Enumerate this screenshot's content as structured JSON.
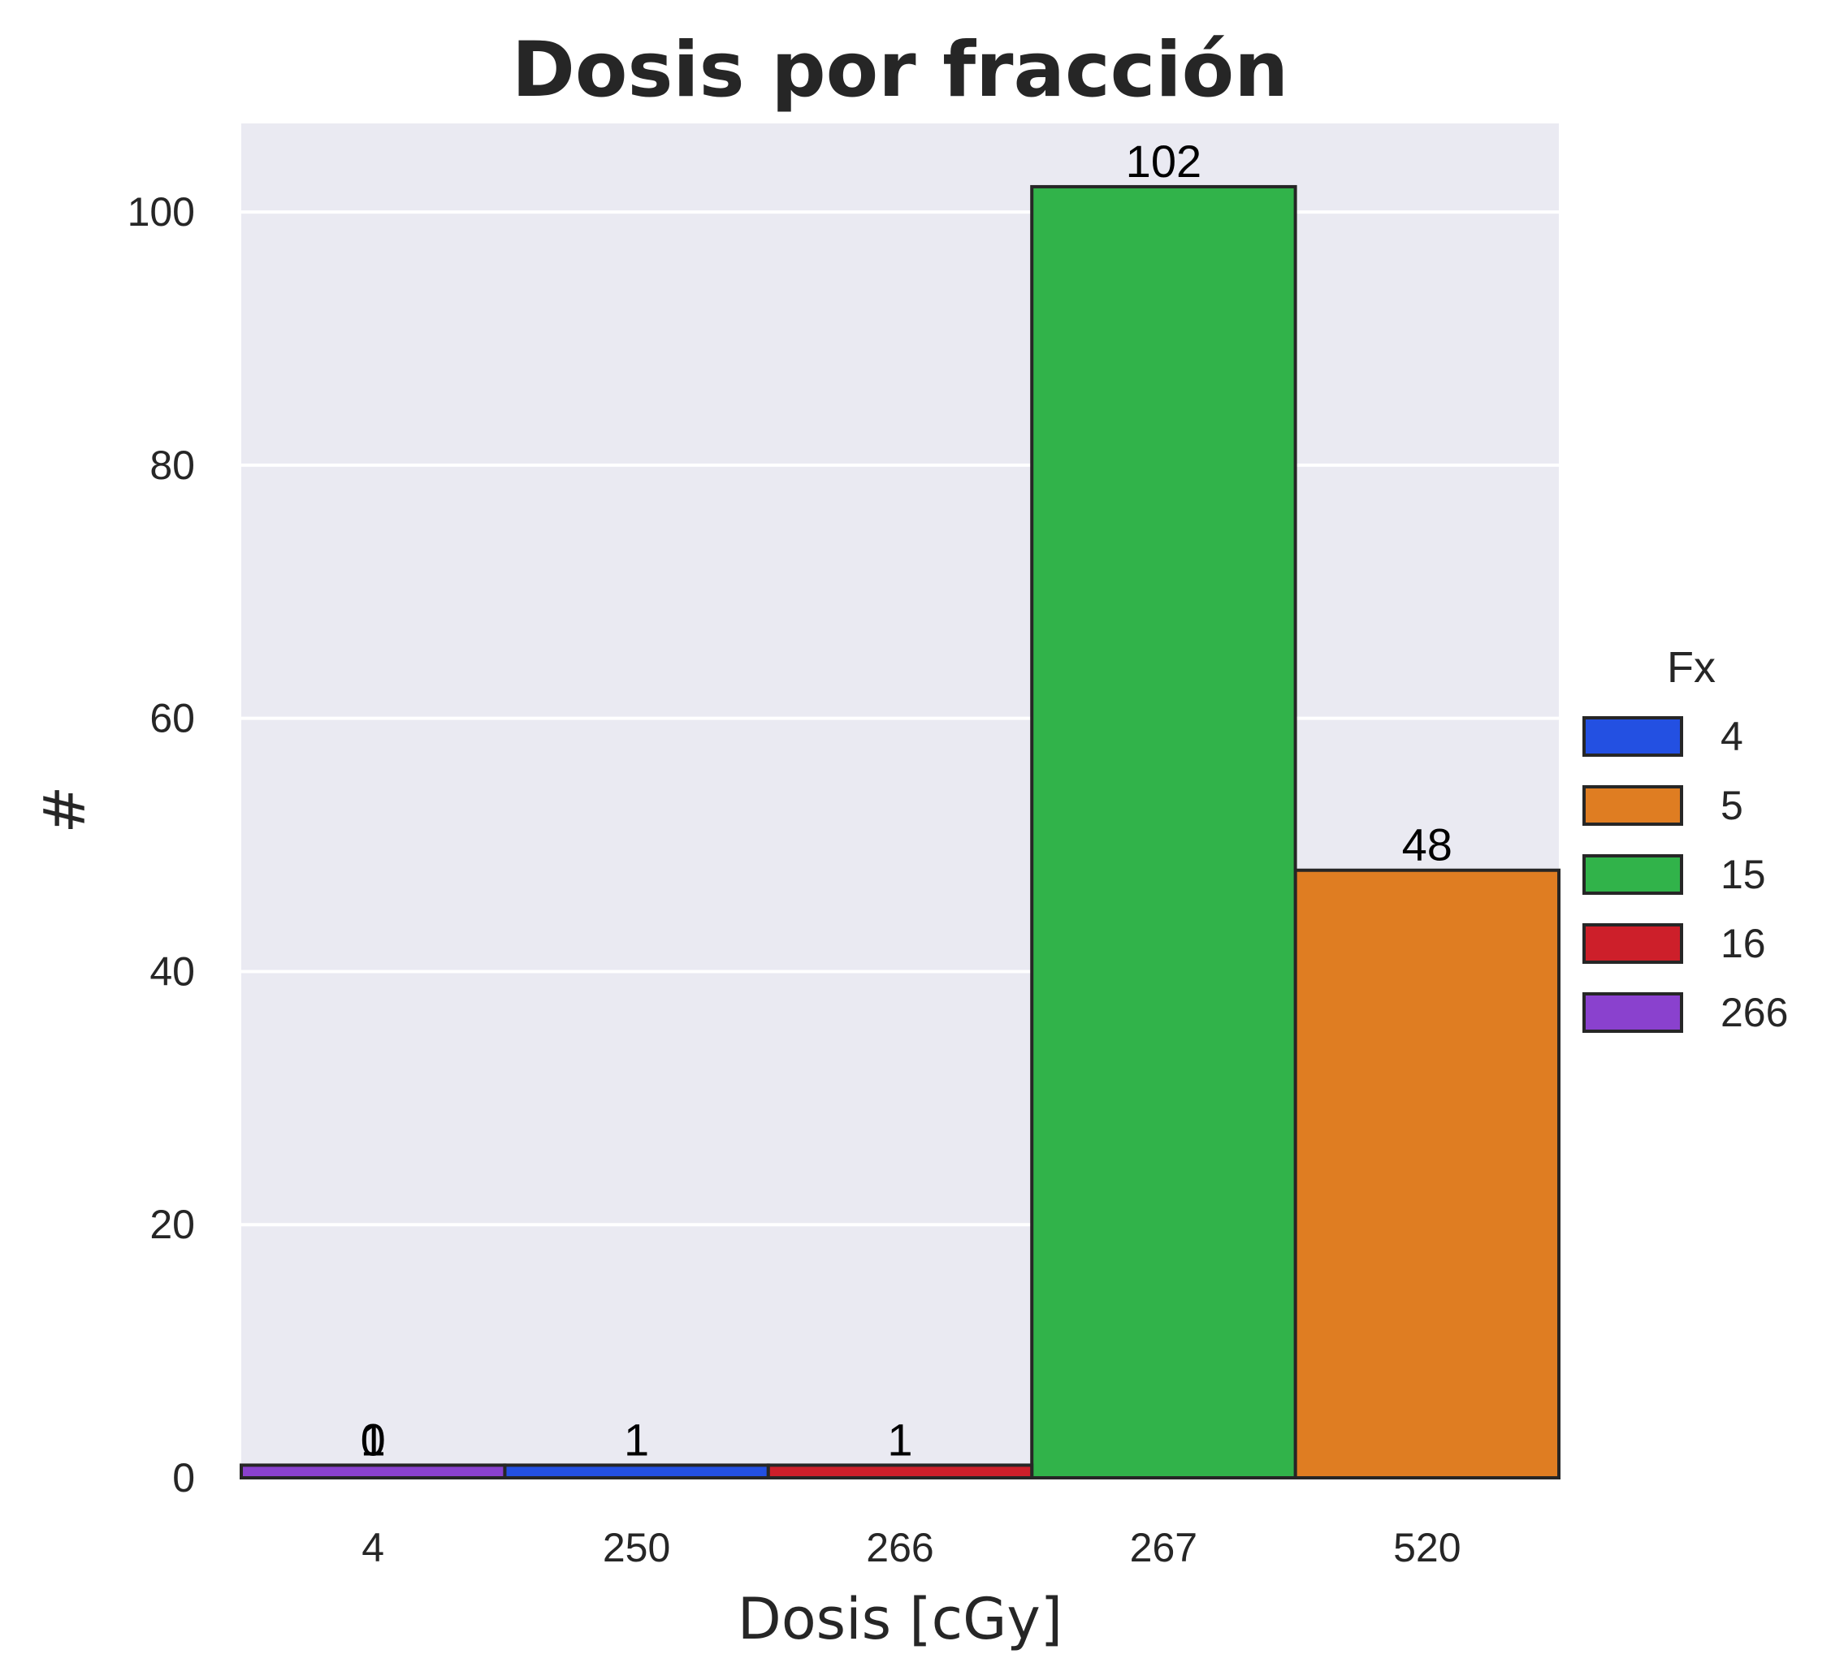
{
  "chart_data": {
    "type": "bar",
    "title": "Dosis por fracción",
    "xlabel": "Dosis [cGy]",
    "ylabel": "#",
    "categories": [
      "4",
      "250",
      "266",
      "267",
      "520"
    ],
    "ylim": [
      0,
      107
    ],
    "yticks": [
      0,
      20,
      40,
      60,
      80,
      100
    ],
    "grid": true,
    "legend": {
      "title": "Fx",
      "placement": "right"
    },
    "series": [
      {
        "name": "4",
        "color": "#2350e2",
        "values": [
          0,
          1,
          0,
          0,
          0
        ]
      },
      {
        "name": "5",
        "color": "#df7d22",
        "values": [
          0,
          0,
          0,
          0,
          48
        ]
      },
      {
        "name": "15",
        "color": "#31b34a",
        "values": [
          0,
          0,
          0,
          102,
          0
        ]
      },
      {
        "name": "16",
        "color": "#cd1f2a",
        "values": [
          0,
          0,
          1,
          0,
          0
        ]
      },
      {
        "name": "266",
        "color": "#8a41ce",
        "values": [
          1,
          0,
          0,
          0,
          0
        ]
      }
    ],
    "bar_labels": [
      {
        "category": "4",
        "text": "1"
      },
      {
        "category": "4",
        "text": "0"
      },
      {
        "category": "250",
        "text": "1"
      },
      {
        "category": "266",
        "text": "1"
      },
      {
        "category": "267",
        "text": "102"
      },
      {
        "category": "520",
        "text": "48"
      }
    ],
    "colors": {
      "plot_background": "#eaeaf2",
      "grid": "#ffffff",
      "bar_edge": "#262626"
    }
  }
}
